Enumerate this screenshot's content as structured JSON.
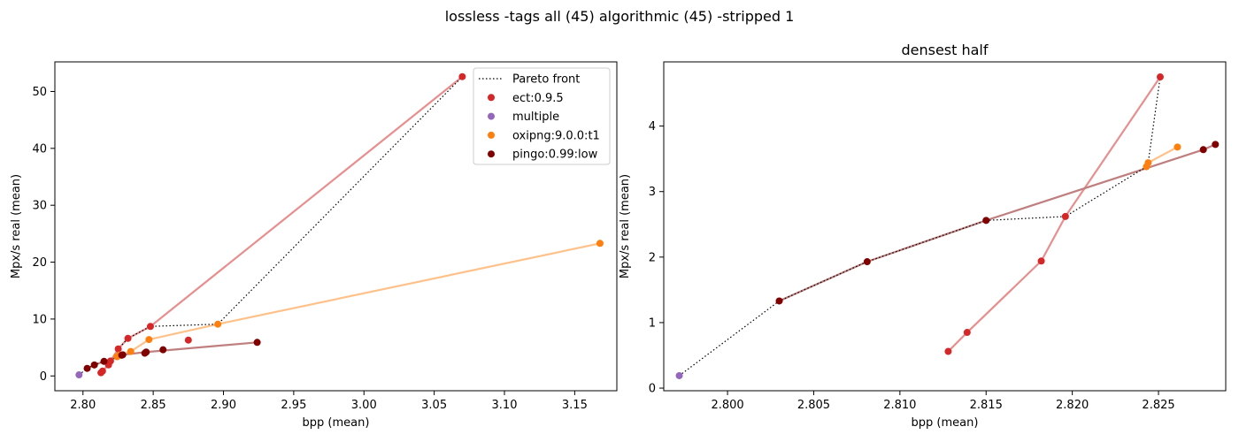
{
  "figure": {
    "suptitle": "lossless -tags all (45) algorithmic (45) -stripped 1"
  },
  "colors": {
    "ect:0.9.5": "#d62728",
    "multiple": "#9467bd",
    "oxipng:9.0.0:t1": "#ff7f0e",
    "pingo:0.99:low": "#800000",
    "ect:0.9.5_line": "#e88e8e",
    "oxipng:9.0.0:t1_line": "#ffc18a",
    "pingo:0.99:low_line": "#bf7f7f",
    "pareto": "#000000"
  },
  "chart_data": [
    {
      "type": "scatter",
      "title": "",
      "xlabel": "bpp (mean)",
      "ylabel": "Mpx/s real (mean)",
      "xlim": [
        2.78,
        3.18
      ],
      "ylim": [
        -2.6,
        55.2
      ],
      "xticks": [
        "2.80",
        "2.85",
        "2.90",
        "2.95",
        "3.00",
        "3.05",
        "3.10",
        "3.15"
      ],
      "yticks": [
        "0",
        "10",
        "20",
        "30",
        "40",
        "50"
      ],
      "grid": false,
      "legend": {
        "placement": "top-right",
        "entries": [
          "Pareto front",
          "ect:0.9.5",
          "multiple",
          "oxipng:9.0.0:t1",
          "pingo:0.99:low"
        ]
      },
      "series": [
        {
          "name": "ect:0.9.5",
          "line": true,
          "points": [
            [
              2.8128,
              0.56
            ],
            [
              2.8139,
              0.85
            ],
            [
              2.8182,
              1.94
            ],
            [
              2.8196,
              2.62
            ],
            [
              2.8251,
              4.75
            ],
            [
              2.832,
              6.6
            ],
            [
              2.848,
              8.7
            ],
            [
              3.07,
              52.6
            ]
          ]
        },
        {
          "name": "ect:0.9.5",
          "line": false,
          "points": [
            [
              2.875,
              6.3
            ]
          ]
        },
        {
          "name": "multiple",
          "line": false,
          "points": [
            [
              2.7972,
              0.19
            ]
          ]
        },
        {
          "name": "oxipng:9.0.0:t1",
          "line": true,
          "points": [
            [
              2.8243,
              3.38
            ],
            [
              2.8244,
              3.44
            ],
            [
              2.8261,
              3.68
            ],
            [
              2.834,
              4.3
            ],
            [
              2.847,
              6.4
            ],
            [
              2.896,
              9.1
            ],
            [
              3.168,
              23.3
            ]
          ]
        },
        {
          "name": "pingo:0.99:low",
          "line": true,
          "points": [
            [
              2.803,
              1.33
            ],
            [
              2.8081,
              1.93
            ],
            [
              2.815,
              2.56
            ],
            [
              2.8276,
              3.64
            ],
            [
              2.8283,
              3.72
            ],
            [
              2.845,
              4.2
            ],
            [
              2.924,
              5.9
            ]
          ]
        },
        {
          "name": "pingo:0.99:low",
          "line": false,
          "points": [
            [
              2.857,
              4.6
            ],
            [
              2.844,
              4.0
            ]
          ]
        }
      ],
      "pareto": [
        [
          2.7972,
          0.19
        ],
        [
          2.803,
          1.33
        ],
        [
          2.8081,
          1.93
        ],
        [
          2.815,
          2.56
        ],
        [
          2.8196,
          2.62
        ],
        [
          2.8243,
          3.38
        ],
        [
          2.8244,
          3.44
        ],
        [
          2.8251,
          4.75
        ],
        [
          2.832,
          6.6
        ],
        [
          2.848,
          8.7
        ],
        [
          2.896,
          9.1
        ],
        [
          3.07,
          52.6
        ]
      ]
    },
    {
      "type": "scatter",
      "title": "densest half",
      "xlabel": "bpp (mean)",
      "ylabel": "Mpx/s real (mean)",
      "xlim": [
        2.7963,
        2.8289
      ],
      "ylim": [
        -0.04,
        4.98
      ],
      "xticks": [
        "2.800",
        "2.805",
        "2.810",
        "2.815",
        "2.820",
        "2.825"
      ],
      "yticks": [
        "0",
        "1",
        "2",
        "3",
        "4"
      ],
      "grid": false,
      "series": [
        {
          "name": "ect:0.9.5",
          "line": true,
          "points": [
            [
              2.8128,
              0.56
            ],
            [
              2.8139,
              0.85
            ],
            [
              2.8182,
              1.94
            ],
            [
              2.8196,
              2.62
            ],
            [
              2.8251,
              4.75
            ]
          ]
        },
        {
          "name": "multiple",
          "line": false,
          "points": [
            [
              2.7972,
              0.19
            ]
          ]
        },
        {
          "name": "oxipng:9.0.0:t1",
          "line": true,
          "points": [
            [
              2.8243,
              3.38
            ],
            [
              2.8244,
              3.44
            ],
            [
              2.8261,
              3.68
            ]
          ]
        },
        {
          "name": "pingo:0.99:low",
          "line": true,
          "points": [
            [
              2.803,
              1.33
            ],
            [
              2.8081,
              1.93
            ],
            [
              2.815,
              2.56
            ],
            [
              2.8276,
              3.64
            ],
            [
              2.8283,
              3.72
            ]
          ]
        }
      ],
      "pareto": [
        [
          2.7972,
          0.19
        ],
        [
          2.803,
          1.33
        ],
        [
          2.8081,
          1.93
        ],
        [
          2.815,
          2.56
        ],
        [
          2.8196,
          2.62
        ],
        [
          2.8243,
          3.38
        ],
        [
          2.8244,
          3.44
        ],
        [
          2.8251,
          4.75
        ]
      ]
    }
  ]
}
